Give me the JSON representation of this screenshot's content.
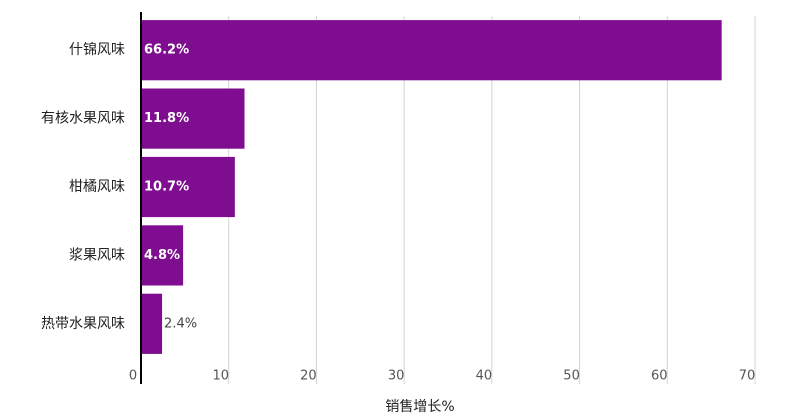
{
  "chart_data": {
    "type": "barh",
    "xlabel": "销售增长%",
    "categories": [
      "什锦风味",
      "有核水果风味",
      "柑橘风味",
      "浆果风味",
      "热带水果风味"
    ],
    "values": [
      66.2,
      11.8,
      10.7,
      4.8,
      2.4
    ],
    "value_labels": [
      "66.2%",
      "11.8%",
      "10.7%",
      "4.8%",
      "2.4%"
    ],
    "color": "#7e0e8f",
    "xlim": [
      0,
      70
    ],
    "xticks": [
      0,
      10,
      20,
      30,
      40,
      50,
      60,
      70
    ],
    "grid": true
  }
}
